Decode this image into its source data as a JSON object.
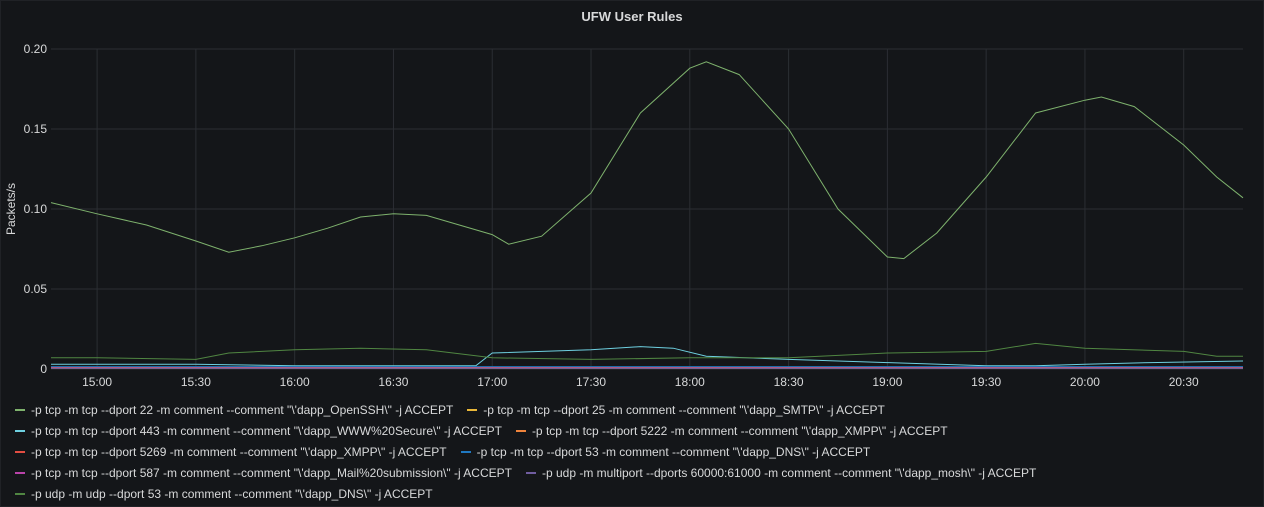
{
  "panel": {
    "title": "UFW User Rules"
  },
  "colors": {
    "grid": "#2b2e33",
    "axis_text": "#d8d9da"
  },
  "chart_data": {
    "type": "line",
    "title": "UFW User Rules",
    "ylabel": "Packets/s",
    "xlabel": "",
    "ylim": [
      0,
      0.2
    ],
    "xlim": [
      "14:46",
      "20:48"
    ],
    "y_ticks": [
      "0",
      "0.05",
      "0.10",
      "0.15",
      "0.20"
    ],
    "x_ticks": [
      "15:00",
      "15:30",
      "16:00",
      "16:30",
      "17:00",
      "17:30",
      "18:00",
      "18:30",
      "19:00",
      "19:30",
      "20:00",
      "20:30"
    ],
    "grid": true,
    "legend_position": "bottom",
    "series": [
      {
        "name": "-p tcp -m tcp --dport 22 -m comment --comment \"\\'dapp_OpenSSH\\\" -j ACCEPT",
        "color": "#7eb26d",
        "x": [
          "14:46",
          "15:00",
          "15:15",
          "15:30",
          "15:40",
          "15:50",
          "16:00",
          "16:10",
          "16:20",
          "16:30",
          "16:40",
          "16:50",
          "17:00",
          "17:05",
          "17:15",
          "17:30",
          "17:45",
          "18:00",
          "18:05",
          "18:15",
          "18:30",
          "18:45",
          "19:00",
          "19:05",
          "19:15",
          "19:30",
          "19:45",
          "20:00",
          "20:05",
          "20:15",
          "20:30",
          "20:40",
          "20:48"
        ],
        "values": [
          0.104,
          0.097,
          0.09,
          0.08,
          0.073,
          0.077,
          0.082,
          0.088,
          0.095,
          0.097,
          0.096,
          0.09,
          0.084,
          0.078,
          0.083,
          0.11,
          0.16,
          0.188,
          0.192,
          0.184,
          0.15,
          0.1,
          0.07,
          0.069,
          0.085,
          0.12,
          0.16,
          0.168,
          0.17,
          0.164,
          0.14,
          0.12,
          0.107
        ]
      },
      {
        "name": "-p tcp -m tcp --dport 25 -m comment --comment \"\\'dapp_SMTP\\\" -j ACCEPT",
        "color": "#eab839",
        "x": [
          "14:46",
          "20:48"
        ],
        "values": [
          0.0005,
          0.0005
        ]
      },
      {
        "name": "-p tcp -m tcp --dport 443 -m comment --comment \"\\'dapp_WWW%20Secure\\\" -j ACCEPT",
        "color": "#6ed0e0",
        "x": [
          "14:46",
          "15:30",
          "16:00",
          "16:30",
          "16:55",
          "17:00",
          "17:30",
          "17:45",
          "17:55",
          "18:05",
          "18:30",
          "19:00",
          "19:30",
          "19:45",
          "20:00",
          "20:20",
          "20:48"
        ],
        "values": [
          0.003,
          0.003,
          0.002,
          0.002,
          0.002,
          0.01,
          0.012,
          0.014,
          0.013,
          0.008,
          0.006,
          0.004,
          0.002,
          0.002,
          0.003,
          0.004,
          0.005
        ]
      },
      {
        "name": "-p tcp -m tcp --dport 5222 -m comment --comment \"\\'dapp_XMPP\\\" -j ACCEPT",
        "color": "#ef843c",
        "x": [
          "14:46",
          "20:48"
        ],
        "values": [
          0.001,
          0.001
        ]
      },
      {
        "name": "-p tcp -m tcp --dport 5269 -m comment --comment \"\\'dapp_XMPP\\\" -j ACCEPT",
        "color": "#e24d42",
        "x": [
          "14:46",
          "20:48"
        ],
        "values": [
          0.0008,
          0.0008
        ]
      },
      {
        "name": "-p tcp -m tcp --dport 53 -m comment --comment \"\\'dapp_DNS\\\" -j ACCEPT",
        "color": "#1f78c1",
        "x": [
          "14:46",
          "20:48"
        ],
        "values": [
          0.0015,
          0.0015
        ]
      },
      {
        "name": "-p tcp -m tcp --dport 587 -m comment --comment \"\\'dapp_Mail%20submission\\\" -j ACCEPT",
        "color": "#ba43a9",
        "x": [
          "14:46",
          "20:48"
        ],
        "values": [
          0.0006,
          0.0006
        ]
      },
      {
        "name": "-p udp -m multiport --dports 60000:61000 -m comment --comment \"\\'dapp_mosh\\\" -j ACCEPT",
        "color": "#705da0",
        "x": [
          "14:46",
          "20:48"
        ],
        "values": [
          0.0004,
          0.0004
        ]
      },
      {
        "name": "-p udp -m udp --dport 53 -m comment --comment \"\\'dapp_DNS\\\" -j ACCEPT",
        "color": "#508642",
        "x": [
          "14:46",
          "15:00",
          "15:30",
          "15:40",
          "16:00",
          "16:20",
          "16:40",
          "17:00",
          "17:30",
          "18:00",
          "18:30",
          "19:00",
          "19:30",
          "19:45",
          "20:00",
          "20:30",
          "20:40",
          "20:48"
        ],
        "values": [
          0.007,
          0.007,
          0.006,
          0.01,
          0.012,
          0.013,
          0.012,
          0.007,
          0.006,
          0.007,
          0.007,
          0.01,
          0.011,
          0.016,
          0.013,
          0.011,
          0.008,
          0.008
        ]
      }
    ]
  }
}
